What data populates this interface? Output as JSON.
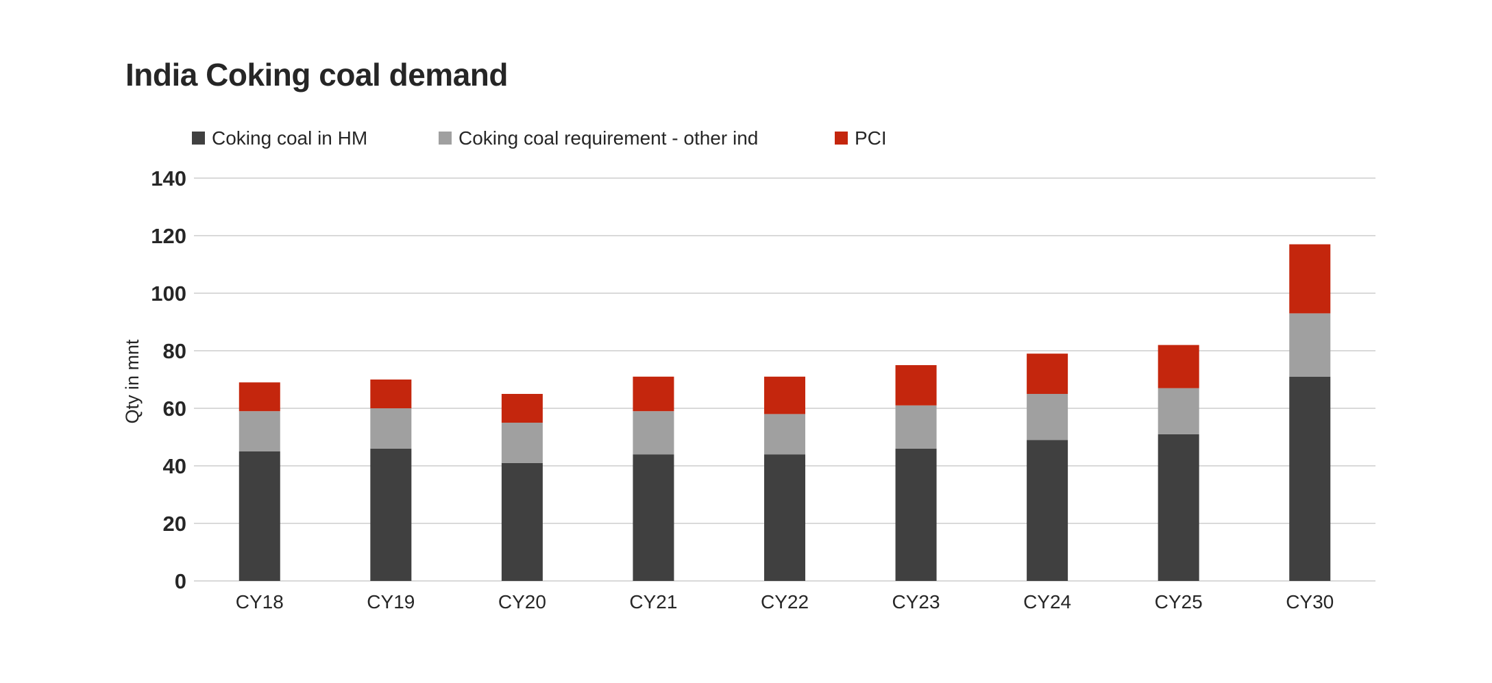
{
  "chart_data": {
    "type": "bar",
    "stacked": true,
    "title": "India Coking coal demand",
    "xlabel": "",
    "ylabel": "Qty in mnt",
    "ylim": [
      0,
      140
    ],
    "yticks": [
      0,
      20,
      40,
      60,
      80,
      100,
      120,
      140
    ],
    "grid": true,
    "legend_position": "top-left",
    "categories": [
      "CY18",
      "CY19",
      "CY20",
      "CY21",
      "CY22",
      "CY23",
      "CY24",
      "CY25",
      "CY30"
    ],
    "series": [
      {
        "name": "Coking coal in HM",
        "color": "#404040",
        "values": [
          45,
          46,
          41,
          44,
          44,
          46,
          49,
          51,
          71
        ]
      },
      {
        "name": "Coking coal requirement - other ind",
        "color": "#a0a0a0",
        "values": [
          14,
          14,
          14,
          15,
          14,
          15,
          16,
          16,
          22
        ]
      },
      {
        "name": "PCI",
        "color": "#c4260d",
        "values": [
          10,
          10,
          10,
          12,
          13,
          14,
          14,
          15,
          24
        ]
      }
    ]
  }
}
